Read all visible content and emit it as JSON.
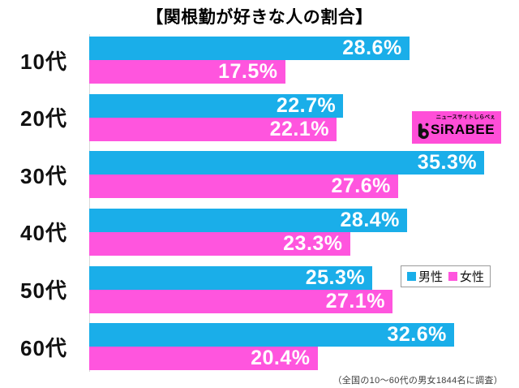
{
  "title": "【関根勤が好きな人の割合】",
  "footnote": "（全国の10〜60代の男女1844名に調査）",
  "legend": {
    "male_label": "男性",
    "female_label": "女性"
  },
  "logo": {
    "top_text": "ニュースサイトしらべぇ",
    "name": "SiRABEE",
    "bg_color": "#ff4ed8"
  },
  "colors": {
    "male": "#1aaee9",
    "female": "#ff55de",
    "axis": "#d9d9d9"
  },
  "chart_data": {
    "type": "bar",
    "orientation": "horizontal",
    "title": "【関根勤が好きな人の割合】",
    "categories": [
      "10代",
      "20代",
      "30代",
      "40代",
      "50代",
      "60代"
    ],
    "series": [
      {
        "name": "男性",
        "color": "#1aaee9",
        "values": [
          28.6,
          22.7,
          35.3,
          28.4,
          25.3,
          32.6
        ]
      },
      {
        "name": "女性",
        "color": "#ff55de",
        "values": [
          17.5,
          22.1,
          27.6,
          23.3,
          27.1,
          20.4
        ]
      }
    ],
    "value_suffix": "%",
    "xlim": [
      0,
      40
    ],
    "grid": false,
    "legend_position": "middle-right",
    "annotation": "（全国の10〜60代の男女1844名に調査）"
  }
}
